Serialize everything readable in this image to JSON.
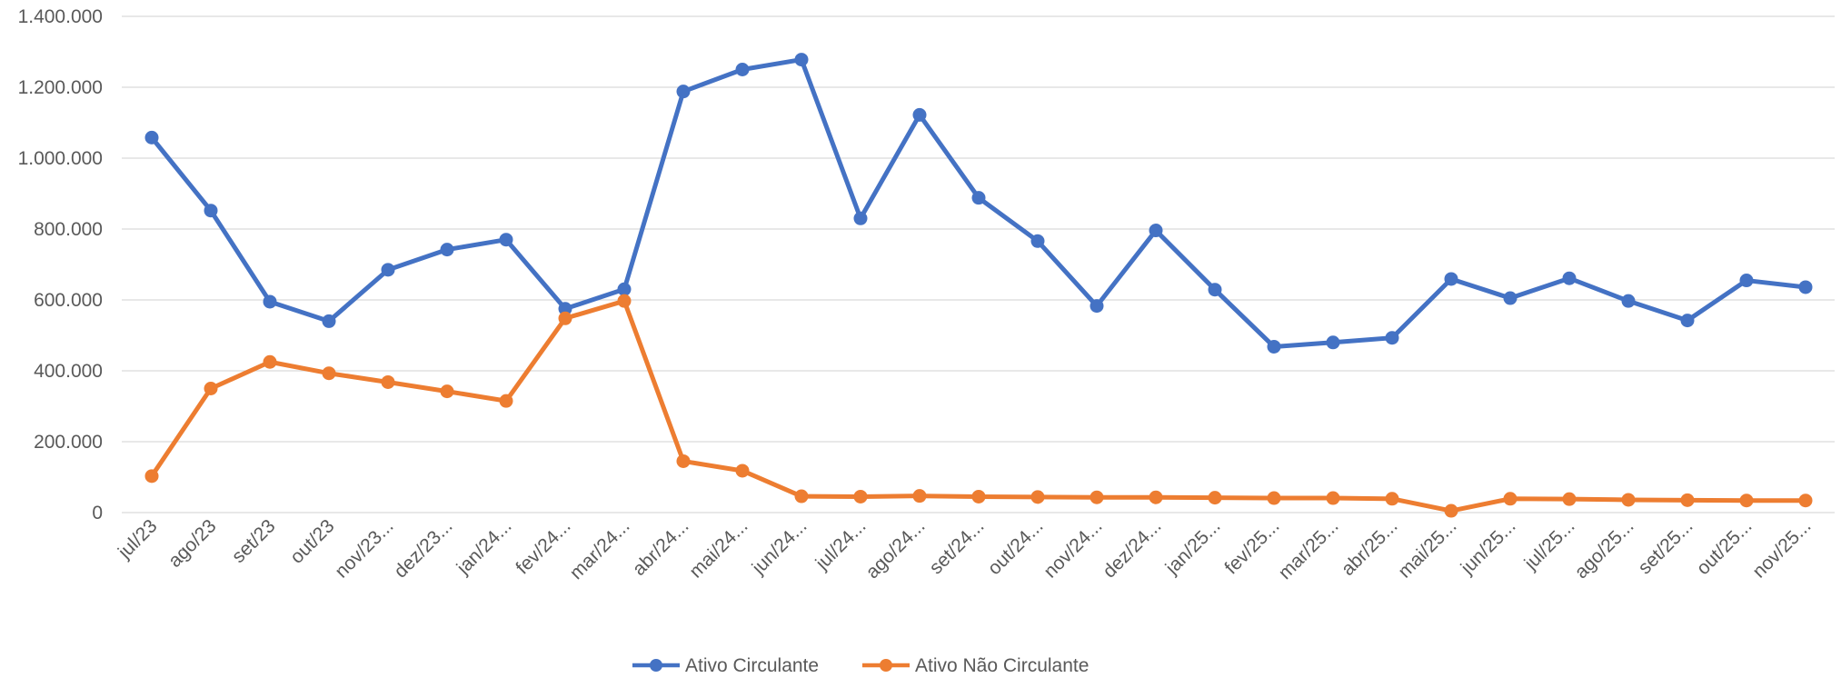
{
  "chart_data": {
    "type": "line",
    "categories": [
      "jul/23",
      "ago/23",
      "set/23",
      "out/23",
      "nov/23...",
      "dez/23...",
      "jan/24...",
      "fev/24...",
      "mar/24...",
      "abr/24...",
      "mai/24...",
      "jun/24...",
      "jul/24...",
      "ago/24...",
      "set/24...",
      "out/24...",
      "nov/24...",
      "dez/24...",
      "jan/25...",
      "fev/25...",
      "mar/25...",
      "abr/25...",
      "mai/25...",
      "jun/25...",
      "jul/25...",
      "ago/25...",
      "set/25...",
      "out/25...",
      "nov/25..."
    ],
    "series": [
      {
        "name": "Ativo Circulante",
        "color": "#4472c4",
        "values": [
          1058000,
          852000,
          595000,
          540000,
          685000,
          742000,
          770000,
          575000,
          630000,
          1188000,
          1250000,
          1278000,
          830000,
          1122000,
          888000,
          766000,
          583000,
          796000,
          629000,
          468000,
          480000,
          493000,
          659000,
          605000,
          661000,
          597000,
          542000,
          655000,
          636000
        ]
      },
      {
        "name": "Ativo Não Circulante",
        "color": "#ed7d31",
        "values": [
          103000,
          350000,
          425000,
          393000,
          368000,
          342000,
          315000,
          548000,
          597000,
          145000,
          118000,
          46000,
          45000,
          47000,
          45000,
          44000,
          43000,
          43000,
          42000,
          41000,
          41000,
          39000,
          5000,
          39000,
          38000,
          36000,
          35000,
          34000,
          34000
        ]
      }
    ],
    "y_ticks": [
      "0",
      "200.000",
      "400.000",
      "600.000",
      "800.000",
      "1.000.000",
      "1.200.000",
      "1.400.000"
    ],
    "ylim": [
      0,
      1400000
    ],
    "grid": true,
    "legend_position": "bottom-center"
  }
}
